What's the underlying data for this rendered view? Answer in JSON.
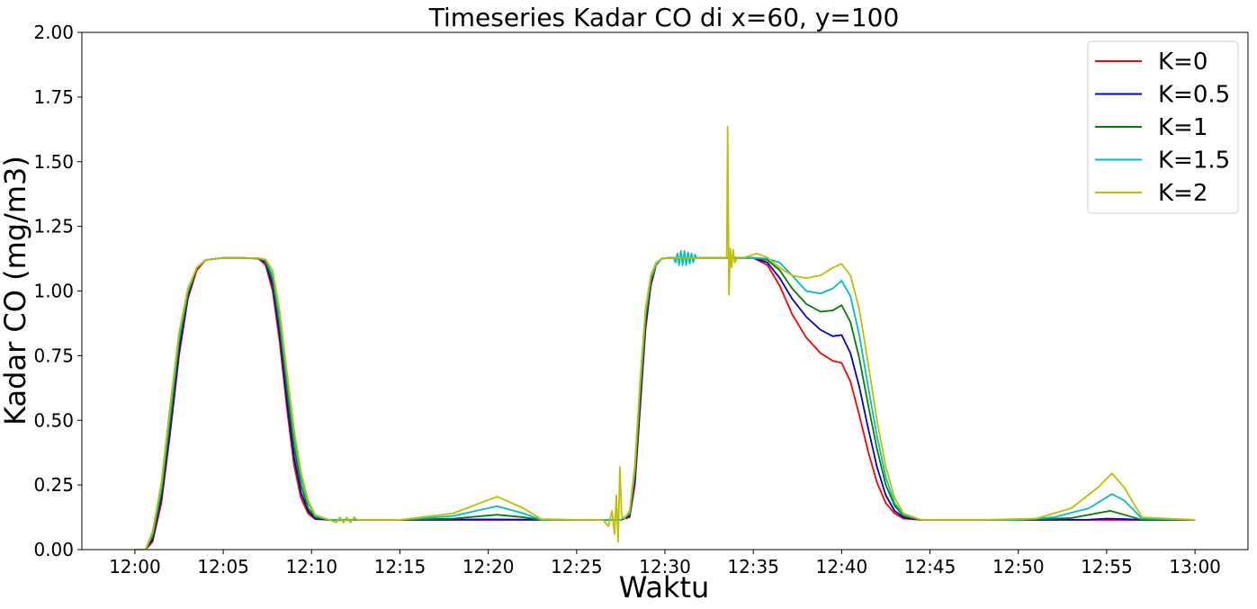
{
  "chart_data": {
    "type": "line",
    "title": "Timeseries Kadar CO di x=60, y=100",
    "xlabel": "Waktu",
    "ylabel": "Kadar CO (mg/m3)",
    "xlim": [
      -3,
      63
    ],
    "ylim": [
      0,
      2
    ],
    "x_unit": "minutes after 12:00",
    "xticks": [
      {
        "value": 0,
        "label": "12:00"
      },
      {
        "value": 5,
        "label": "12:05"
      },
      {
        "value": 10,
        "label": "12:10"
      },
      {
        "value": 15,
        "label": "12:15"
      },
      {
        "value": 20,
        "label": "12:20"
      },
      {
        "value": 25,
        "label": "12:25"
      },
      {
        "value": 30,
        "label": "12:30"
      },
      {
        "value": 35,
        "label": "12:35"
      },
      {
        "value": 40,
        "label": "12:40"
      },
      {
        "value": 45,
        "label": "12:45"
      },
      {
        "value": 50,
        "label": "12:50"
      },
      {
        "value": 55,
        "label": "12:55"
      },
      {
        "value": 60,
        "label": "13:00"
      }
    ],
    "yticks": [
      {
        "value": 0.0,
        "label": "0.00"
      },
      {
        "value": 0.25,
        "label": "0.25"
      },
      {
        "value": 0.5,
        "label": "0.50"
      },
      {
        "value": 0.75,
        "label": "0.75"
      },
      {
        "value": 1.0,
        "label": "1.00"
      },
      {
        "value": 1.25,
        "label": "1.25"
      },
      {
        "value": 1.5,
        "label": "1.50"
      },
      {
        "value": 1.75,
        "label": "1.75"
      },
      {
        "value": 2.0,
        "label": "2.00"
      }
    ],
    "legend_position": "top-right",
    "series": [
      {
        "name": "K=0",
        "color": "#ff0000",
        "x": [
          0,
          0.6,
          1.0,
          1.5,
          2.0,
          2.5,
          3.0,
          3.5,
          4.0,
          5.0,
          6.0,
          7.0,
          7.4,
          7.8,
          8.2,
          8.6,
          9.0,
          9.4,
          9.8,
          10.2,
          11,
          15,
          20,
          25,
          27,
          27.5,
          28,
          28.3,
          28.6,
          28.9,
          29.2,
          29.5,
          29.8,
          30.2,
          31,
          33,
          35,
          35.8,
          36.5,
          37.2,
          38,
          38.8,
          39.5,
          40.0,
          40.5,
          41,
          41.5,
          42,
          42.5,
          43,
          43.5,
          44.5,
          50,
          55,
          57,
          60
        ],
        "y": [
          0.0,
          0.0,
          0.03,
          0.18,
          0.45,
          0.75,
          0.97,
          1.08,
          1.12,
          1.128,
          1.128,
          1.125,
          1.1,
          1.0,
          0.8,
          0.55,
          0.33,
          0.2,
          0.14,
          0.118,
          0.115,
          0.115,
          0.115,
          0.115,
          0.115,
          0.115,
          0.125,
          0.25,
          0.55,
          0.85,
          1.02,
          1.1,
          1.125,
          1.128,
          1.128,
          1.128,
          1.128,
          1.1,
          1.02,
          0.91,
          0.82,
          0.76,
          0.73,
          0.722,
          0.65,
          0.52,
          0.38,
          0.26,
          0.18,
          0.14,
          0.12,
          0.115,
          0.115,
          0.115,
          0.115,
          0.115
        ]
      },
      {
        "name": "K=0.5",
        "color": "#0000cd",
        "x": [
          0,
          0.6,
          1.0,
          1.5,
          2.0,
          2.5,
          3.0,
          3.5,
          4.0,
          5.0,
          6.0,
          7.0,
          7.4,
          7.8,
          8.2,
          8.6,
          9.0,
          9.4,
          9.8,
          10.2,
          11,
          15,
          20,
          25,
          27,
          27.5,
          28,
          28.3,
          28.6,
          28.9,
          29.2,
          29.5,
          29.8,
          30.2,
          31,
          33,
          35,
          35.8,
          36.5,
          37.2,
          38,
          38.8,
          39.5,
          40.0,
          40.5,
          41,
          41.5,
          42,
          42.5,
          43,
          43.5,
          44.5,
          50,
          54,
          55,
          56,
          57,
          60
        ],
        "y": [
          0.0,
          0.0,
          0.04,
          0.2,
          0.47,
          0.77,
          0.98,
          1.09,
          1.12,
          1.128,
          1.128,
          1.126,
          1.11,
          1.02,
          0.83,
          0.58,
          0.36,
          0.22,
          0.15,
          0.12,
          0.115,
          0.115,
          0.117,
          0.115,
          0.115,
          0.115,
          0.13,
          0.27,
          0.57,
          0.87,
          1.03,
          1.1,
          1.125,
          1.128,
          1.128,
          1.128,
          1.128,
          1.11,
          1.05,
          0.97,
          0.9,
          0.85,
          0.825,
          0.83,
          0.76,
          0.63,
          0.47,
          0.32,
          0.21,
          0.15,
          0.125,
          0.115,
          0.115,
          0.116,
          0.12,
          0.118,
          0.115,
          0.115
        ]
      },
      {
        "name": "K=1",
        "color": "#008000",
        "x": [
          0,
          0.6,
          1.0,
          1.5,
          2.0,
          2.5,
          3.0,
          3.5,
          4.0,
          5.0,
          6.0,
          7.0,
          7.4,
          7.8,
          8.2,
          8.6,
          9.0,
          9.4,
          9.8,
          10.2,
          11,
          15,
          18,
          20.5,
          22,
          23,
          25,
          27,
          27.5,
          28,
          28.3,
          28.6,
          28.9,
          29.2,
          29.5,
          29.8,
          30.2,
          31,
          33,
          35,
          35.8,
          36.5,
          37.2,
          38,
          38.8,
          39.5,
          40.0,
          40.5,
          41,
          41.5,
          42,
          42.5,
          43,
          43.5,
          44.5,
          50,
          53,
          55.2,
          56,
          57,
          60
        ],
        "y": [
          0.0,
          0.0,
          0.05,
          0.22,
          0.5,
          0.8,
          0.99,
          1.09,
          1.12,
          1.128,
          1.128,
          1.126,
          1.115,
          1.04,
          0.86,
          0.62,
          0.4,
          0.25,
          0.16,
          0.125,
          0.115,
          0.115,
          0.12,
          0.135,
          0.125,
          0.115,
          0.115,
          0.115,
          0.115,
          0.135,
          0.29,
          0.6,
          0.89,
          1.04,
          1.1,
          1.125,
          1.128,
          1.128,
          1.128,
          1.128,
          1.12,
          1.08,
          1.01,
          0.95,
          0.92,
          0.925,
          0.945,
          0.88,
          0.74,
          0.56,
          0.39,
          0.25,
          0.17,
          0.13,
          0.115,
          0.115,
          0.122,
          0.15,
          0.135,
          0.115,
          0.115
        ]
      },
      {
        "name": "K=1.5",
        "color": "#00bfbf",
        "x": [
          0,
          0.6,
          1.0,
          1.5,
          2.0,
          2.5,
          3.0,
          3.5,
          4.0,
          5.0,
          6.0,
          7.0,
          7.4,
          7.8,
          8.2,
          8.6,
          9.0,
          9.4,
          9.8,
          10.2,
          11,
          15,
          18,
          20.5,
          22,
          23,
          25,
          27,
          27.5,
          28,
          28.3,
          28.6,
          28.9,
          29.2,
          29.5,
          29.8,
          30.2,
          30.5,
          30.6,
          30.7,
          30.8,
          30.9,
          31.0,
          31.1,
          31.2,
          31.3,
          31.4,
          31.5,
          31.6,
          31.7,
          31.8,
          32,
          33,
          35,
          35.8,
          36.5,
          37.2,
          38,
          38.8,
          39.5,
          40.0,
          40.5,
          41,
          41.5,
          42,
          42.5,
          43,
          43.5,
          44.5,
          50,
          52,
          54,
          55.3,
          56,
          57,
          60
        ],
        "y": [
          0.0,
          0.0,
          0.06,
          0.24,
          0.53,
          0.82,
          1.0,
          1.09,
          1.12,
          1.128,
          1.128,
          1.127,
          1.12,
          1.06,
          0.89,
          0.66,
          0.44,
          0.28,
          0.18,
          0.13,
          0.115,
          0.115,
          0.13,
          0.168,
          0.14,
          0.115,
          0.115,
          0.115,
          0.115,
          0.14,
          0.31,
          0.63,
          0.91,
          1.05,
          1.1,
          1.125,
          1.128,
          1.128,
          1.11,
          1.145,
          1.1,
          1.155,
          1.1,
          1.155,
          1.1,
          1.15,
          1.105,
          1.145,
          1.11,
          1.14,
          1.128,
          1.128,
          1.128,
          1.128,
          1.125,
          1.11,
          1.06,
          1.0,
          0.99,
          1.01,
          1.04,
          0.98,
          0.83,
          0.63,
          0.44,
          0.28,
          0.18,
          0.135,
          0.115,
          0.115,
          0.125,
          0.16,
          0.215,
          0.19,
          0.12,
          0.115
        ]
      },
      {
        "name": "K=2",
        "color": "#bfbf00",
        "x": [
          0,
          0.6,
          1.0,
          1.5,
          2.0,
          2.5,
          3.0,
          3.5,
          4.0,
          5.0,
          6.0,
          7.0,
          7.4,
          7.8,
          8.2,
          8.6,
          9.0,
          9.4,
          9.8,
          10.2,
          11,
          11.4,
          11.6,
          11.8,
          12.0,
          12.2,
          12.4,
          12.6,
          13,
          15,
          18,
          20.5,
          22,
          23,
          25,
          26.5,
          26.8,
          27.0,
          27.15,
          27.25,
          27.35,
          27.45,
          27.55,
          27.7,
          28,
          28.3,
          28.6,
          28.9,
          29.2,
          29.5,
          29.8,
          30.2,
          31,
          33,
          33.5,
          33.55,
          33.62,
          33.7,
          33.78,
          33.86,
          33.95,
          34.1,
          34.5,
          35.2,
          35.8,
          36.5,
          37.2,
          38,
          38.8,
          39.5,
          40.0,
          40.5,
          41,
          41.5,
          42,
          42.5,
          43,
          43.5,
          44.5,
          48,
          51,
          53,
          54.5,
          55.3,
          56,
          57,
          60
        ],
        "y": [
          0.0,
          0.0,
          0.07,
          0.26,
          0.56,
          0.84,
          1.01,
          1.09,
          1.12,
          1.128,
          1.128,
          1.127,
          1.122,
          1.08,
          0.92,
          0.69,
          0.47,
          0.3,
          0.19,
          0.135,
          0.115,
          0.105,
          0.125,
          0.105,
          0.125,
          0.105,
          0.125,
          0.115,
          0.115,
          0.115,
          0.14,
          0.205,
          0.16,
          0.118,
          0.115,
          0.115,
          0.09,
          0.15,
          0.06,
          0.21,
          0.03,
          0.32,
          0.13,
          0.12,
          0.15,
          0.33,
          0.66,
          0.93,
          1.06,
          1.11,
          1.125,
          1.128,
          1.128,
          1.128,
          1.128,
          1.635,
          0.985,
          1.165,
          1.09,
          1.16,
          1.11,
          1.13,
          1.13,
          1.145,
          1.13,
          1.09,
          1.06,
          1.05,
          1.06,
          1.09,
          1.105,
          1.06,
          0.93,
          0.72,
          0.5,
          0.32,
          0.2,
          0.14,
          0.115,
          0.115,
          0.12,
          0.16,
          0.24,
          0.295,
          0.24,
          0.125,
          0.115
        ]
      }
    ]
  }
}
